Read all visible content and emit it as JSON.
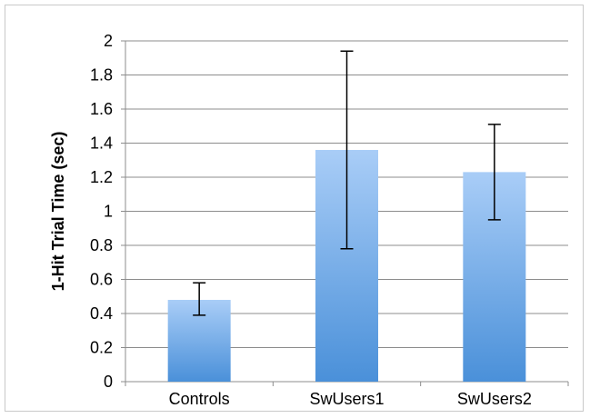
{
  "chart_data": {
    "type": "bar",
    "title": "",
    "xlabel": "",
    "ylabel": "1-Hit Trial Time (sec)",
    "categories": [
      "Controls",
      "SwUsers1",
      "SwUsers2"
    ],
    "values": [
      0.48,
      1.36,
      1.23
    ],
    "error_bars": [
      {
        "low": 0.39,
        "high": 0.58
      },
      {
        "low": 0.78,
        "high": 1.94
      },
      {
        "low": 0.95,
        "high": 1.51
      }
    ],
    "ylim": [
      0,
      2
    ],
    "yticks": [
      0,
      0.2,
      0.4,
      0.6,
      0.8,
      1,
      1.2,
      1.4,
      1.6,
      1.8,
      2
    ],
    "ytick_labels": [
      "0",
      "0.2",
      "0.4",
      "0.6",
      "0.8",
      "1",
      "1.2",
      "1.4",
      "1.6",
      "1.8",
      "2"
    ],
    "grid": true,
    "legend": "none",
    "colors": {
      "bar_top": "#a9cdf7",
      "bar_bottom": "#4a90d9",
      "grid": "#8c8c8c",
      "axis": "#8c8c8c",
      "error_bar": "#000000"
    }
  }
}
